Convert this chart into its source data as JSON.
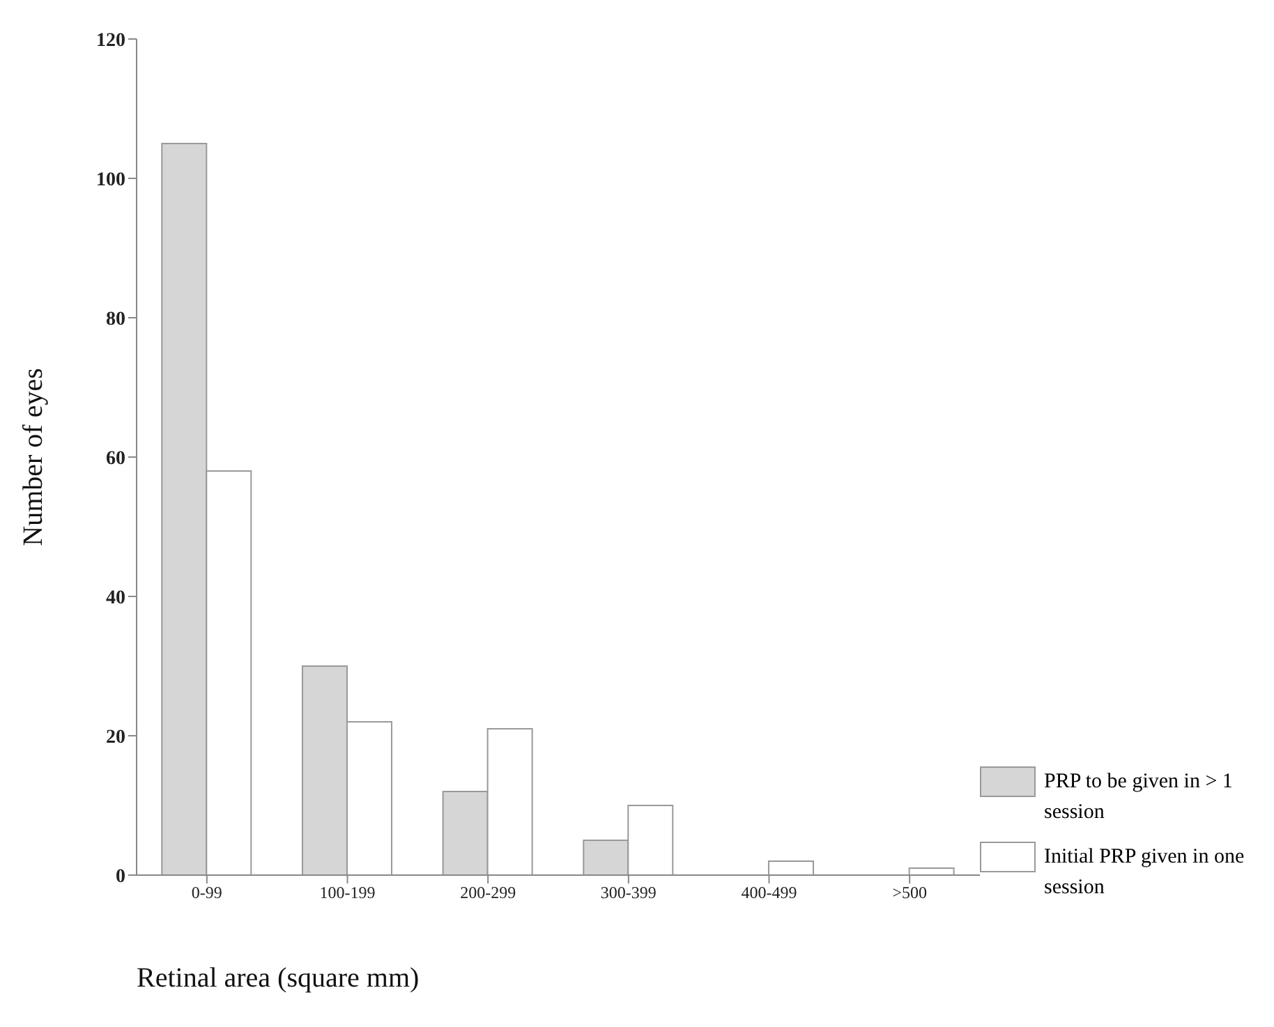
{
  "chart_data": {
    "type": "bar",
    "xlabel": "Retinal area (square mm)",
    "ylabel": "Number of eyes",
    "categories": [
      "0-99",
      "100-199",
      "200-299",
      "300-399",
      "400-499",
      ">500"
    ],
    "series": [
      {
        "name": "PRP to be given in > 1 session",
        "color": "#d6d6d6",
        "values": [
          105,
          30,
          12,
          5,
          0,
          0
        ]
      },
      {
        "name": "Initial PRP given in one session",
        "color": "#ffffff",
        "values": [
          58,
          22,
          21,
          10,
          2,
          1
        ]
      }
    ],
    "ylim": [
      0,
      120
    ],
    "yticks": [
      0,
      20,
      40,
      60,
      80,
      100,
      120
    ],
    "grid": false,
    "legend": "bottom right"
  }
}
